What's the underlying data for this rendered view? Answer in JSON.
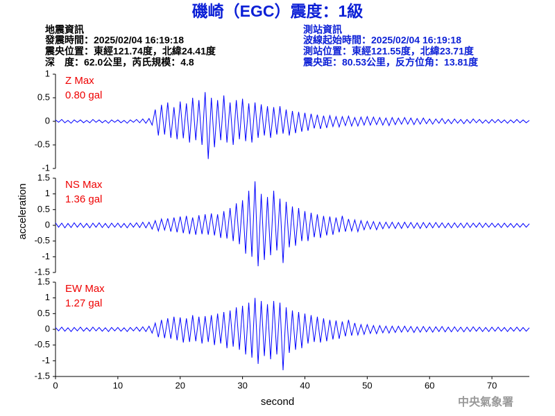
{
  "header": {
    "title": "磯崎（EGC）震度：1級",
    "left": [
      "地震資訊",
      "發震時間：2025/02/04 16:19:18",
      "震央位置：東經121.74度，北緯24.41度",
      "深　度：62.0公里，芮氏規模：4.8"
    ],
    "right": [
      "測站資訊",
      "波線起始時間：2025/02/04 16:19:18",
      "測站位置：東經121.55度，北緯23.71度",
      "震央距：80.53公里，反方位角：13.81度"
    ],
    "footer": "中央氣象署"
  },
  "chart_data": [
    {
      "type": "line",
      "annotations": [
        "Z Max",
        "0.80 gal"
      ],
      "xlim": [
        0,
        76
      ],
      "ylim": [
        -1,
        1
      ],
      "yticks": [
        -1,
        -0.5,
        0,
        0.5,
        1
      ],
      "x": [
        0,
        0.5,
        1,
        1.5,
        2,
        2.5,
        3,
        3.5,
        4,
        4.5,
        5,
        5.5,
        6,
        6.5,
        7,
        7.5,
        8,
        8.5,
        9,
        9.5,
        10,
        10.5,
        11,
        11.5,
        12,
        12.5,
        13,
        13.5,
        14,
        14.5,
        15,
        15.5,
        16,
        16.5,
        17,
        17.5,
        18,
        18.5,
        19,
        19.5,
        20,
        20.5,
        21,
        21.5,
        22,
        22.5,
        23,
        23.5,
        24,
        24.5,
        25,
        25.5,
        26,
        26.5,
        27,
        27.5,
        28,
        28.5,
        29,
        29.5,
        30,
        30.5,
        31,
        31.5,
        32,
        32.5,
        33,
        33.5,
        34,
        34.5,
        35,
        35.5,
        36,
        36.5,
        37,
        37.5,
        38,
        38.5,
        39,
        39.5,
        40,
        40.5,
        41,
        41.5,
        42,
        42.5,
        43,
        43.5,
        44,
        44.5,
        45,
        45.5,
        46,
        46.5,
        47,
        47.5,
        48,
        48.5,
        49,
        49.5,
        50,
        50.5,
        51,
        51.5,
        52,
        52.5,
        53,
        53.5,
        54,
        54.5,
        55,
        55.5,
        56,
        56.5,
        57,
        57.5,
        58,
        58.5,
        59,
        59.5,
        60,
        60.5,
        61,
        61.5,
        62,
        62.5,
        63,
        63.5,
        64,
        64.5,
        65,
        65.5,
        66,
        66.5,
        67,
        67.5,
        68,
        68.5,
        69,
        69.5,
        70,
        70.5,
        71,
        71.5,
        72,
        72.5,
        73,
        73.5,
        74,
        74.5,
        75,
        75.5,
        76
      ],
      "series": [
        {
          "color": "#0000ff",
          "values": [
            0.03,
            -0.02,
            0.04,
            -0.03,
            0.02,
            -0.04,
            0.03,
            -0.02,
            0.03,
            -0.03,
            0.02,
            -0.03,
            0.04,
            -0.02,
            0.03,
            -0.03,
            0.02,
            -0.04,
            0.03,
            -0.02,
            0.03,
            -0.03,
            0.02,
            -0.04,
            0.03,
            -0.02,
            0.04,
            -0.03,
            0.05,
            -0.04,
            0.06,
            -0.08,
            0.25,
            -0.3,
            0.35,
            -0.28,
            0.4,
            -0.35,
            0.3,
            -0.38,
            0.42,
            -0.36,
            0.38,
            -0.45,
            0.5,
            -0.4,
            0.45,
            -0.5,
            0.62,
            -0.8,
            0.5,
            -0.55,
            0.45,
            -0.4,
            0.55,
            -0.45,
            0.4,
            -0.5,
            0.45,
            -0.38,
            0.48,
            -0.42,
            0.38,
            -0.45,
            0.4,
            -0.35,
            0.36,
            -0.3,
            0.32,
            -0.35,
            0.3,
            -0.28,
            0.32,
            -0.26,
            0.25,
            -0.3,
            0.22,
            -0.25,
            0.2,
            -0.22,
            0.18,
            -0.2,
            0.16,
            -0.15,
            0.14,
            -0.16,
            0.12,
            -0.14,
            0.12,
            -0.11,
            0.1,
            -0.12,
            0.1,
            -0.09,
            0.11,
            -0.1,
            0.08,
            -0.1,
            0.09,
            -0.08,
            0.1,
            -0.08,
            0.09,
            -0.07,
            0.08,
            -0.08,
            0.07,
            -0.09,
            0.08,
            -0.07,
            0.07,
            -0.06,
            0.08,
            -0.06,
            0.07,
            -0.07,
            0.06,
            -0.06,
            0.07,
            -0.05,
            0.05,
            -0.06,
            0.05,
            -0.04,
            0.06,
            -0.05,
            0.04,
            -0.05,
            0.05,
            -0.04,
            0.04,
            -0.05,
            0.04,
            -0.04,
            0.05,
            -0.03,
            0.04,
            -0.04,
            0.03,
            -0.04,
            0.04,
            -0.03,
            0.04,
            -0.03,
            0.03,
            -0.04,
            0.03,
            -0.03,
            0.04,
            -0.03,
            0.03,
            -0.03,
            0.02
          ]
        }
      ]
    },
    {
      "type": "line",
      "annotations": [
        "NS Max",
        "1.36 gal"
      ],
      "ylabel": "acceleration",
      "xlim": [
        0,
        76
      ],
      "ylim": [
        -1.5,
        1.5
      ],
      "yticks": [
        -1.5,
        -1,
        -0.5,
        0,
        0.5,
        1,
        1.5
      ],
      "x": [
        0,
        0.5,
        1,
        1.5,
        2,
        2.5,
        3,
        3.5,
        4,
        4.5,
        5,
        5.5,
        6,
        6.5,
        7,
        7.5,
        8,
        8.5,
        9,
        9.5,
        10,
        10.5,
        11,
        11.5,
        12,
        12.5,
        13,
        13.5,
        14,
        14.5,
        15,
        15.5,
        16,
        16.5,
        17,
        17.5,
        18,
        18.5,
        19,
        19.5,
        20,
        20.5,
        21,
        21.5,
        22,
        22.5,
        23,
        23.5,
        24,
        24.5,
        25,
        25.5,
        26,
        26.5,
        27,
        27.5,
        28,
        28.5,
        29,
        29.5,
        30,
        30.5,
        31,
        31.5,
        32,
        32.5,
        33,
        33.5,
        34,
        34.5,
        35,
        35.5,
        36,
        36.5,
        37,
        37.5,
        38,
        38.5,
        39,
        39.5,
        40,
        40.5,
        41,
        41.5,
        42,
        42.5,
        43,
        43.5,
        44,
        44.5,
        45,
        45.5,
        46,
        46.5,
        47,
        47.5,
        48,
        48.5,
        49,
        49.5,
        50,
        50.5,
        51,
        51.5,
        52,
        52.5,
        53,
        53.5,
        54,
        54.5,
        55,
        55.5,
        56,
        56.5,
        57,
        57.5,
        58,
        58.5,
        59,
        59.5,
        60,
        60.5,
        61,
        61.5,
        62,
        62.5,
        63,
        63.5,
        64,
        64.5,
        65,
        65.5,
        66,
        66.5,
        67,
        67.5,
        68,
        68.5,
        69,
        69.5,
        70,
        70.5,
        71,
        71.5,
        72,
        72.5,
        73,
        73.5,
        74,
        74.5,
        75,
        75.5,
        76
      ],
      "series": [
        {
          "color": "#0000ff",
          "values": [
            0.08,
            -0.06,
            0.07,
            -0.08,
            0.06,
            -0.07,
            0.08,
            -0.06,
            0.07,
            -0.07,
            0.06,
            -0.08,
            0.07,
            -0.06,
            0.08,
            -0.07,
            0.06,
            -0.08,
            0.07,
            -0.06,
            0.07,
            -0.07,
            0.06,
            -0.08,
            0.07,
            -0.06,
            0.08,
            -0.07,
            0.1,
            -0.08,
            0.1,
            -0.12,
            0.15,
            -0.18,
            0.2,
            -0.15,
            0.22,
            -0.2,
            0.25,
            -0.22,
            0.28,
            -0.25,
            0.3,
            -0.28,
            0.25,
            -0.3,
            0.32,
            -0.28,
            0.35,
            -0.3,
            0.38,
            -0.32,
            0.35,
            -0.4,
            0.45,
            -0.42,
            0.55,
            -0.5,
            0.7,
            -0.6,
            0.8,
            -0.9,
            1.1,
            -1.0,
            1.4,
            -1.3,
            1.0,
            -1.1,
            0.9,
            -0.95,
            1.1,
            -0.8,
            0.85,
            -1.2,
            0.75,
            -0.7,
            0.6,
            -0.65,
            0.55,
            -0.5,
            0.45,
            -0.5,
            0.4,
            -0.38,
            0.35,
            -0.4,
            0.3,
            -0.32,
            0.28,
            -0.3,
            0.25,
            -0.22,
            0.3,
            -0.2,
            0.2,
            -0.18,
            0.17,
            -0.2,
            0.15,
            -0.14,
            0.13,
            -0.12,
            0.12,
            -0.14,
            0.1,
            -0.11,
            0.1,
            -0.09,
            0.1,
            -0.1,
            0.09,
            -0.1,
            0.1,
            -0.08,
            0.09,
            -0.09,
            0.08,
            -0.1,
            0.09,
            -0.08,
            0.08,
            -0.08,
            0.09,
            -0.07,
            0.08,
            -0.08,
            0.07,
            -0.08,
            0.08,
            -0.07,
            0.07,
            -0.08,
            0.08,
            -0.07,
            0.07,
            -0.06,
            0.08,
            -0.07,
            0.07,
            -0.06,
            0.07,
            -0.06,
            0.06,
            -0.07,
            0.07,
            -0.06,
            0.06,
            -0.07,
            0.06,
            -0.06,
            0.06,
            -0.06,
            0.05
          ]
        }
      ]
    },
    {
      "type": "line",
      "annotations": [
        "EW Max",
        "1.27 gal"
      ],
      "xlabel": "second",
      "xlim": [
        0,
        76
      ],
      "xticks": [
        0,
        10,
        20,
        30,
        40,
        50,
        60,
        70
      ],
      "ylim": [
        -1.5,
        1.5
      ],
      "yticks": [
        -1.5,
        -1,
        -0.5,
        0,
        0.5,
        1,
        1.5
      ],
      "x": [
        0,
        0.5,
        1,
        1.5,
        2,
        2.5,
        3,
        3.5,
        4,
        4.5,
        5,
        5.5,
        6,
        6.5,
        7,
        7.5,
        8,
        8.5,
        9,
        9.5,
        10,
        10.5,
        11,
        11.5,
        12,
        12.5,
        13,
        13.5,
        14,
        14.5,
        15,
        15.5,
        16,
        16.5,
        17,
        17.5,
        18,
        18.5,
        19,
        19.5,
        20,
        20.5,
        21,
        21.5,
        22,
        22.5,
        23,
        23.5,
        24,
        24.5,
        25,
        25.5,
        26,
        26.5,
        27,
        27.5,
        28,
        28.5,
        29,
        29.5,
        30,
        30.5,
        31,
        31.5,
        32,
        32.5,
        33,
        33.5,
        34,
        34.5,
        35,
        35.5,
        36,
        36.5,
        37,
        37.5,
        38,
        38.5,
        39,
        39.5,
        40,
        40.5,
        41,
        41.5,
        42,
        42.5,
        43,
        43.5,
        44,
        44.5,
        45,
        45.5,
        46,
        46.5,
        47,
        47.5,
        48,
        48.5,
        49,
        49.5,
        50,
        50.5,
        51,
        51.5,
        52,
        52.5,
        53,
        53.5,
        54,
        54.5,
        55,
        55.5,
        56,
        56.5,
        57,
        57.5,
        58,
        58.5,
        59,
        59.5,
        60,
        60.5,
        61,
        61.5,
        62,
        62.5,
        63,
        63.5,
        64,
        64.5,
        65,
        65.5,
        66,
        66.5,
        67,
        67.5,
        68,
        68.5,
        69,
        69.5,
        70,
        70.5,
        71,
        71.5,
        72,
        72.5,
        73,
        73.5,
        74,
        74.5,
        75,
        75.5,
        76
      ],
      "series": [
        {
          "color": "#0000ff",
          "values": [
            0.06,
            -0.05,
            0.07,
            -0.06,
            0.05,
            -0.07,
            0.06,
            -0.05,
            0.07,
            -0.06,
            0.05,
            -0.06,
            0.07,
            -0.05,
            0.06,
            -0.06,
            0.05,
            -0.07,
            0.06,
            -0.05,
            0.06,
            -0.06,
            0.05,
            -0.07,
            0.06,
            -0.05,
            0.07,
            -0.06,
            0.08,
            -0.07,
            0.1,
            -0.12,
            0.2,
            -0.25,
            0.3,
            -0.28,
            0.35,
            -0.3,
            0.4,
            -0.35,
            0.38,
            -0.42,
            0.35,
            -0.4,
            0.45,
            -0.38,
            0.4,
            -0.45,
            0.42,
            -0.4,
            0.45,
            -0.5,
            0.5,
            -0.45,
            0.55,
            -0.6,
            0.6,
            -0.55,
            0.7,
            -0.65,
            0.75,
            -0.8,
            0.85,
            -0.9,
            1.0,
            -1.1,
            0.9,
            -0.85,
            0.8,
            -0.95,
            0.9,
            -0.8,
            0.85,
            -1.3,
            0.7,
            -0.75,
            0.6,
            -0.65,
            0.55,
            -0.6,
            0.5,
            -0.45,
            0.45,
            -0.4,
            0.4,
            -0.42,
            0.35,
            -0.38,
            0.3,
            -0.32,
            0.28,
            -0.3,
            0.25,
            -0.22,
            0.3,
            -0.2,
            0.2,
            -0.18,
            0.15,
            -0.16,
            0.15,
            -0.13,
            0.12,
            -0.14,
            0.12,
            -0.11,
            0.1,
            -0.12,
            0.1,
            -0.1,
            0.1,
            -0.09,
            0.1,
            -0.08,
            0.09,
            -0.1,
            0.08,
            -0.09,
            0.09,
            -0.08,
            0.08,
            -0.09,
            0.08,
            -0.07,
            0.09,
            -0.08,
            0.07,
            -0.08,
            0.08,
            -0.07,
            0.07,
            -0.08,
            0.07,
            -0.07,
            0.08,
            -0.06,
            0.07,
            -0.07,
            0.06,
            -0.07,
            0.07,
            -0.06,
            0.07,
            -0.06,
            0.06,
            -0.07,
            0.06,
            -0.06,
            0.07,
            -0.06,
            0.06,
            -0.06,
            0.05
          ]
        }
      ]
    }
  ]
}
